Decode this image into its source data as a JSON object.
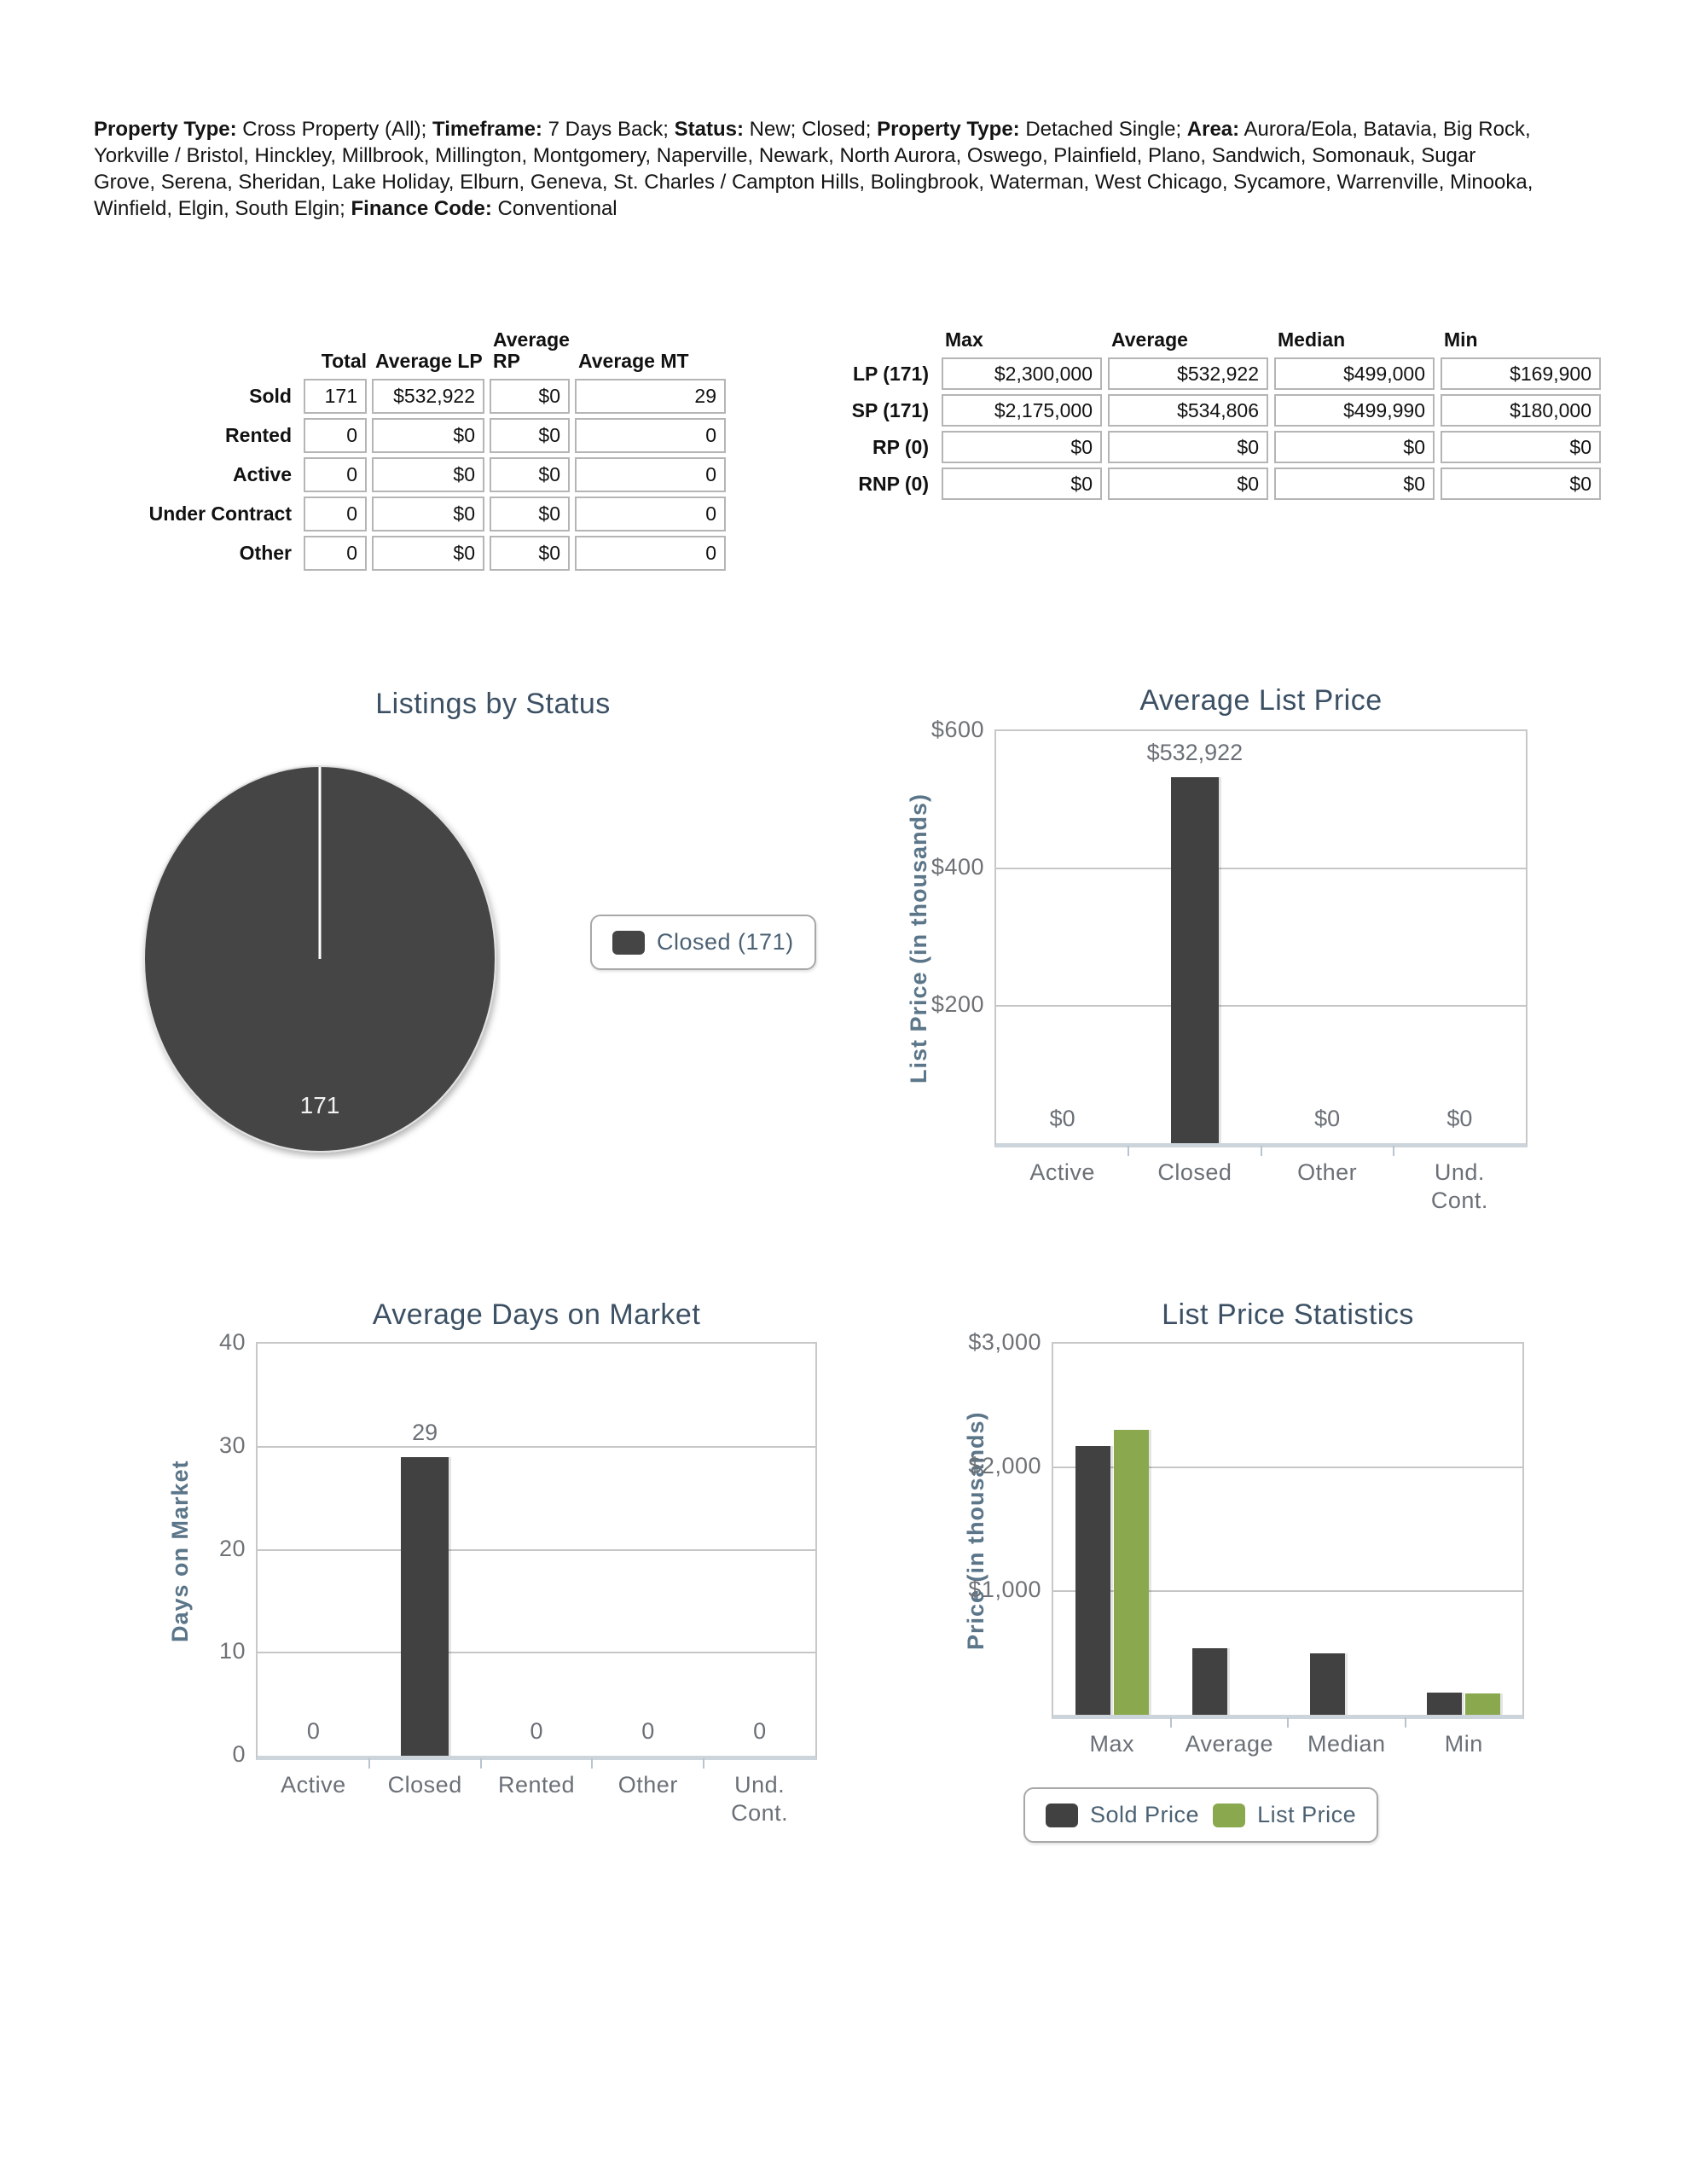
{
  "colors": {
    "accent_dark": "#414141",
    "accent_green": "#8aa84e",
    "title_text": "#3c5064",
    "axis_label_text": "#5b7589",
    "tick_text": "#6e7276"
  },
  "header": {
    "segments": [
      {
        "text": "Property Type:",
        "bold": true
      },
      {
        "text": " Cross Property (All); ",
        "bold": false
      },
      {
        "text": "Timeframe:",
        "bold": true
      },
      {
        "text": " 7 Days Back; ",
        "bold": false
      },
      {
        "text": "Status:",
        "bold": true
      },
      {
        "text": " New; Closed; ",
        "bold": false
      },
      {
        "text": "Property Type:",
        "bold": true
      },
      {
        "text": " Detached Single; ",
        "bold": false
      },
      {
        "text": "Area:",
        "bold": true
      },
      {
        "text": " Aurora/Eola, Batavia, Big Rock, Yorkville / Bristol, Hinckley, Millbrook, Millington, Montgomery, Naperville, Newark, North Aurora, Oswego, Plainfield, Plano, Sandwich, Somonauk, Sugar Grove, Serena, Sheridan, Lake Holiday, Elburn, Geneva, St. Charles / Campton Hills, Bolingbrook, Waterman, West Chicago, Sycamore, Warrenville, Minooka, Winfield, Elgin, South Elgin; ",
        "bold": false
      },
      {
        "text": "Finance Code:",
        "bold": true
      },
      {
        "text": " Conventional",
        "bold": false
      }
    ]
  },
  "summary_table": {
    "columns": [
      "Total",
      "Average LP",
      "Average RP",
      "Average MT"
    ],
    "rows": [
      {
        "label": "Sold",
        "values": [
          "171",
          "$532,922",
          "$0",
          "29"
        ]
      },
      {
        "label": "Rented",
        "values": [
          "0",
          "$0",
          "$0",
          "0"
        ]
      },
      {
        "label": "Active",
        "values": [
          "0",
          "$0",
          "$0",
          "0"
        ]
      },
      {
        "label": "Under Contract",
        "values": [
          "0",
          "$0",
          "$0",
          "0"
        ]
      },
      {
        "label": "Other",
        "values": [
          "0",
          "$0",
          "$0",
          "0"
        ]
      }
    ]
  },
  "price_table": {
    "columns": [
      "Max",
      "Average",
      "Median",
      "Min"
    ],
    "rows": [
      {
        "label": "LP (171)",
        "values": [
          "$2,300,000",
          "$532,922",
          "$499,000",
          "$169,900"
        ]
      },
      {
        "label": "SP (171)",
        "values": [
          "$2,175,000",
          "$534,806",
          "$499,990",
          "$180,000"
        ]
      },
      {
        "label": "RP (0)",
        "values": [
          "$0",
          "$0",
          "$0",
          "$0"
        ]
      },
      {
        "label": "RNP (0)",
        "values": [
          "$0",
          "$0",
          "$0",
          "$0"
        ]
      }
    ]
  },
  "chart_data": [
    {
      "type": "pie",
      "title": "Listings by Status",
      "slices": [
        {
          "label": "Closed",
          "value": 171
        }
      ],
      "data_label": "171",
      "legend": [
        "Closed (171)"
      ],
      "legend_position": "right",
      "color": "#454545"
    },
    {
      "type": "bar",
      "title": "Average List Price",
      "ylabel": "List Price (in thousands)",
      "categories": [
        "Active",
        "Closed",
        "Other",
        "Und. Cont."
      ],
      "values": [
        0,
        532.922,
        0,
        0
      ],
      "bar_labels": [
        "$0",
        "$532,922",
        "$0",
        "$0"
      ],
      "yticks": [
        "$600",
        "$400",
        "$200"
      ],
      "ytick_values": [
        600,
        400,
        200
      ],
      "ylim": [
        0,
        600
      ],
      "grid": true
    },
    {
      "type": "bar",
      "title": "Average Days on Market",
      "ylabel": "Days on Market",
      "categories": [
        "Active",
        "Closed",
        "Rented",
        "Other",
        "Und. Cont."
      ],
      "values": [
        0,
        29,
        0,
        0,
        0
      ],
      "bar_labels": [
        "0",
        "29",
        "0",
        "0",
        "0"
      ],
      "yticks": [
        "40",
        "30",
        "20",
        "10",
        "0"
      ],
      "ytick_values": [
        40,
        30,
        20,
        10,
        0
      ],
      "ylim": [
        0,
        40
      ],
      "grid": true
    },
    {
      "type": "bar",
      "title": "List Price Statistics",
      "ylabel": "Price (in thousands)",
      "categories": [
        "Max",
        "Average",
        "Median",
        "Min"
      ],
      "series": [
        {
          "name": "Sold Price",
          "color": "#414141",
          "values": [
            2175,
            534.806,
            499.99,
            180
          ]
        },
        {
          "name": "List Price",
          "color": "#8aa84e",
          "values": [
            2300,
            null,
            null,
            169.9
          ]
        }
      ],
      "yticks": [
        "$3,000",
        "$2,000",
        "$1,000"
      ],
      "ytick_values": [
        3000,
        2000,
        1000
      ],
      "ylim": [
        0,
        3000
      ],
      "grid": true,
      "legend": [
        "Sold Price",
        "List Price"
      ],
      "legend_position": "bottom"
    }
  ]
}
